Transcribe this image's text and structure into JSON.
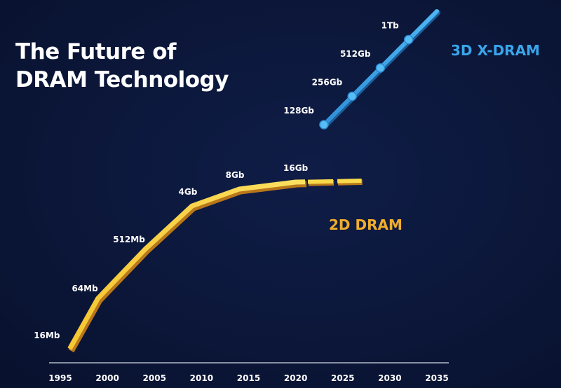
{
  "title_lines": [
    "The Future of",
    "DRAM Technology"
  ],
  "colors": {
    "background": "#0b1638",
    "dram_2d": "#f4c02c",
    "dram_3d": "#3aa5ea",
    "text": "#ffffff"
  },
  "chart_data": {
    "type": "line",
    "title": "The Future of DRAM Technology",
    "xlabel": "",
    "ylabel": "",
    "xlim": [
      1995,
      2035
    ],
    "x_ticks": [
      1995,
      2000,
      2005,
      2010,
      2015,
      2020,
      2025,
      2030,
      2035
    ],
    "y_scale": "log2",
    "y_range_gb": [
      0.015625,
      1024
    ],
    "grid": false,
    "series": [
      {
        "name": "2D DRAM",
        "color": "#f4c02c",
        "projected_from": 2021,
        "points": [
          {
            "x": 1996,
            "label": "16Mb",
            "capacity_gb": 0.015625
          },
          {
            "x": 1999,
            "label": "64Mb",
            "capacity_gb": 0.0625
          },
          {
            "x": 2004,
            "label": "512Mb",
            "capacity_gb": 0.5
          },
          {
            "x": 2009,
            "label": "4Gb",
            "capacity_gb": 4
          },
          {
            "x": 2014,
            "label": "8Gb",
            "capacity_gb": 8
          },
          {
            "x": 2020,
            "label": "16Gb",
            "capacity_gb": 16
          },
          {
            "x": 2027,
            "label": "",
            "capacity_gb": 18
          }
        ]
      },
      {
        "name": "3D X-DRAM",
        "color": "#3aa5ea",
        "points": [
          {
            "x": 2023,
            "label": "128Gb",
            "capacity_gb": 128
          },
          {
            "x": 2026,
            "label": "256Gb",
            "capacity_gb": 256
          },
          {
            "x": 2029,
            "label": "512Gb",
            "capacity_gb": 512
          },
          {
            "x": 2032,
            "label": "1Tb",
            "capacity_gb": 1024
          },
          {
            "x": 2035,
            "label": "",
            "capacity_gb": 2048
          }
        ]
      }
    ]
  }
}
